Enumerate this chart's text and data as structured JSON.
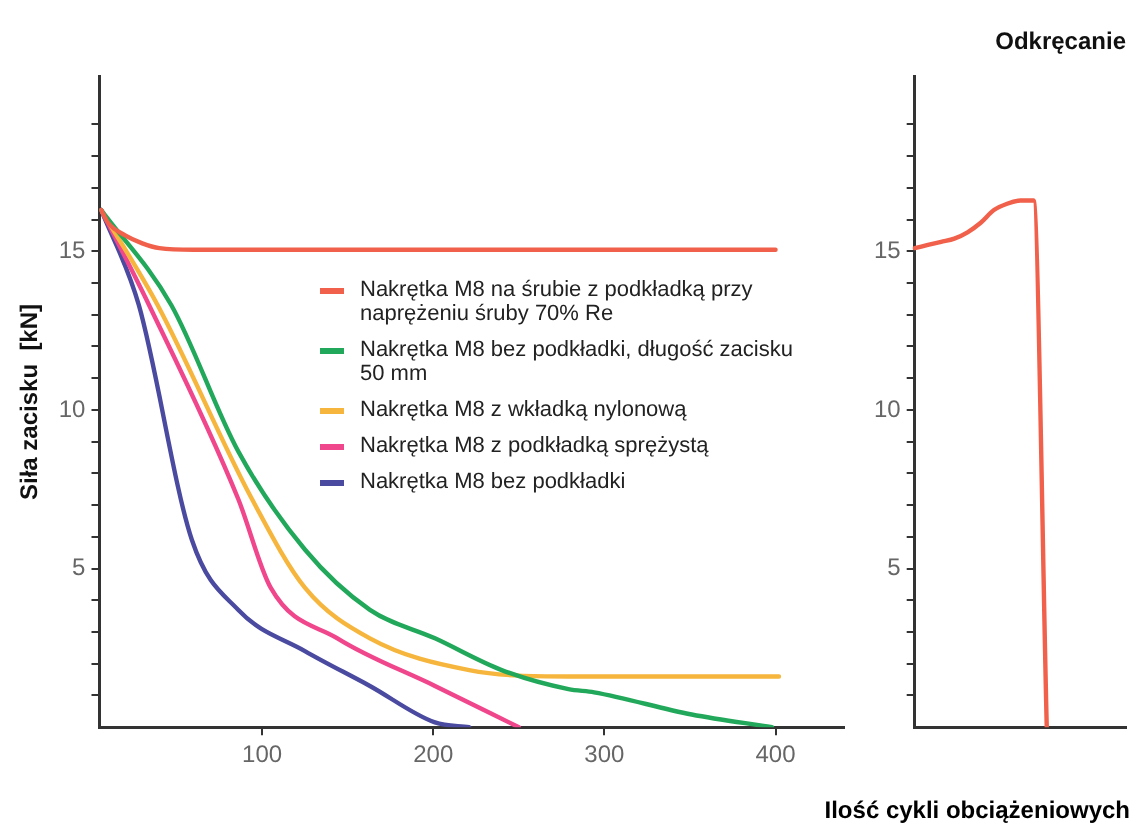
{
  "chart_data": [
    {
      "type": "line",
      "ylabel": "Siła zacisku  [kN]",
      "xlim": [
        5,
        440
      ],
      "xticks": [
        100,
        200,
        300,
        400
      ],
      "ylim": [
        0,
        20.5
      ],
      "yticks": [
        {
          "value": 1,
          "label": null
        },
        {
          "value": 2,
          "label": null
        },
        {
          "value": 3,
          "label": null
        },
        {
          "value": 4,
          "label": null
        },
        5,
        {
          "value": 6,
          "label": null
        },
        {
          "value": 7,
          "label": null
        },
        {
          "value": 8,
          "label": null
        },
        {
          "value": 9,
          "label": null
        },
        10,
        {
          "value": 11,
          "label": null
        },
        {
          "value": 12,
          "label": null
        },
        {
          "value": 13,
          "label": null
        },
        {
          "value": 14,
          "label": null
        },
        15,
        {
          "value": 16,
          "label": null
        },
        {
          "value": 17,
          "label": null
        },
        {
          "value": 18,
          "label": null
        },
        {
          "value": 19,
          "label": null
        }
      ],
      "legend": "right",
      "marker": "none",
      "series": [
        {
          "name": "Nakrętka M8 na śrubie z podkładką przy naprężeniu śruby 70% Re",
          "color": "#f0604a",
          "x": [
            6,
            10,
            20,
            30,
            40,
            60,
            400
          ],
          "values": [
            16.3,
            15.9,
            15.5,
            15.25,
            15.1,
            15.05,
            15.05
          ]
        },
        {
          "name": "Nakrętka M8 bez podkładki, długość zacisku 50 mm",
          "color": "#22a85a",
          "x": [
            6,
            47,
            86,
            125,
            163,
            201,
            240,
            279,
            294,
            351,
            398
          ],
          "values": [
            16.3,
            13.3,
            8.7,
            5.6,
            3.7,
            2.8,
            1.8,
            1.2,
            1.1,
            0.4,
            0
          ]
        },
        {
          "name": "Nakrętka M8 z wkładką nylonową",
          "color": "#f6b53c",
          "x": [
            6,
            39,
            94,
            125,
            163,
            221,
            279,
            402
          ],
          "values": [
            16.3,
            13.3,
            7.2,
            4.4,
            2.8,
            1.8,
            1.6,
            1.6
          ]
        },
        {
          "name": "Nakrętka M8 z podkładką sprężystą",
          "color": "#f0468c",
          "x": [
            6,
            34,
            86,
            105,
            144,
            201,
            250
          ],
          "values": [
            16.3,
            13.3,
            7.2,
            4.4,
            2.8,
            1.3,
            0
          ]
        },
        {
          "name": "Nakrętka M8 bez podkładki",
          "color": "#4a4aa0",
          "x": [
            6,
            28,
            59,
            86,
            125,
            163,
            201,
            221
          ],
          "values": [
            16.3,
            13.3,
            5.9,
            3.7,
            2.4,
            1.3,
            0.15,
            0
          ]
        }
      ]
    },
    {
      "type": "line",
      "title": "Odkręcanie",
      "xlabel": "Ilość cykli obciążeniowych",
      "categories": [
        null,
        null,
        null,
        null,
        null,
        null,
        null,
        null,
        null,
        null,
        null,
        null,
        null,
        null,
        null,
        null,
        null
      ],
      "ylim": [
        0,
        20.5
      ],
      "yticks": [
        {
          "value": 1,
          "label": null
        },
        {
          "value": 2,
          "label": null
        },
        {
          "value": 3,
          "label": null
        },
        {
          "value": 4,
          "label": null
        },
        5,
        {
          "value": 6,
          "label": null
        },
        {
          "value": 7,
          "label": null
        },
        {
          "value": 8,
          "label": null
        },
        {
          "value": 9,
          "label": null
        },
        10,
        {
          "value": 11,
          "label": null
        },
        {
          "value": 12,
          "label": null
        },
        {
          "value": 13,
          "label": null
        },
        {
          "value": 14,
          "label": null
        },
        15,
        {
          "value": 16,
          "label": null
        },
        {
          "value": 17,
          "label": null
        },
        {
          "value": 18,
          "label": null
        },
        {
          "value": 19,
          "label": null
        }
      ],
      "tick_labels": "y",
      "marker": "none",
      "series": [
        {
          "color": "#f0604a",
          "values": [
            15.1,
            15.2,
            15.3,
            15.4,
            15.6,
            15.9,
            16.3,
            16.5,
            16.6,
            16.6,
            0,
            null,
            null,
            null,
            null,
            null,
            null
          ]
        }
      ]
    }
  ]
}
